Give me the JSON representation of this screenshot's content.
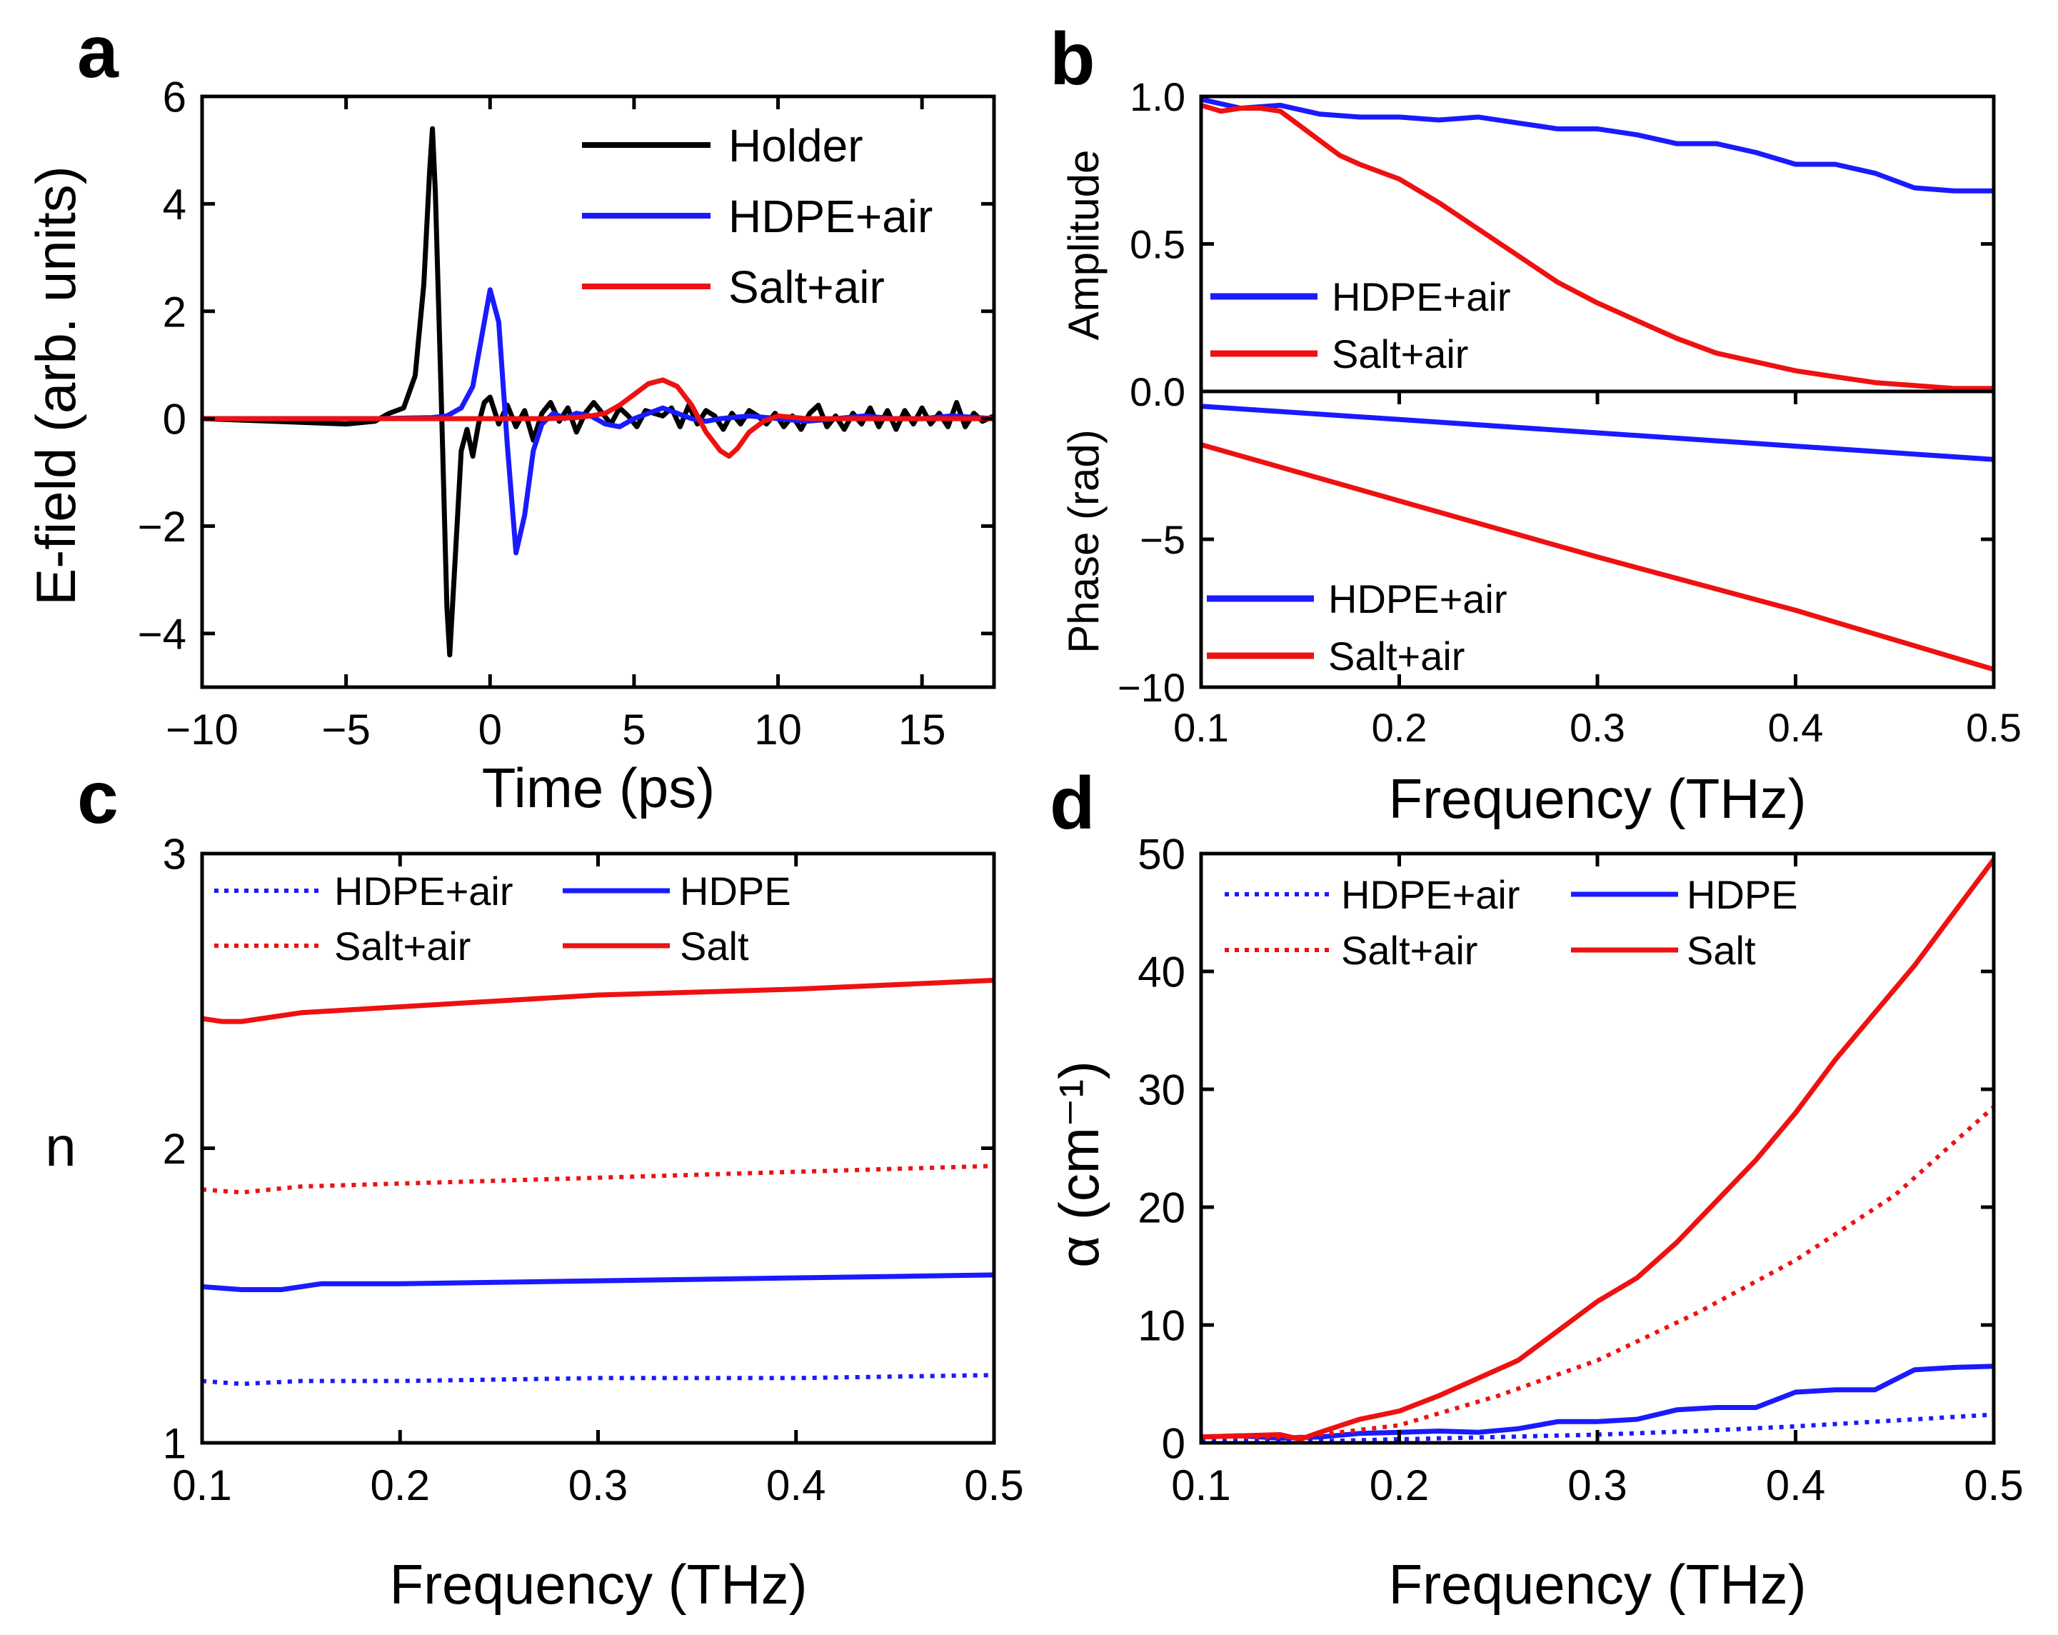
{
  "colors": {
    "holder": "#000000",
    "hdpe": "#1a1aff",
    "salt": "#ee1111",
    "frame": "#000000"
  },
  "panels": {
    "a": "a",
    "b": "b",
    "c": "c",
    "d": "d"
  },
  "chart_data": [
    {
      "id": "a",
      "type": "line",
      "xlabel": "Time (ps)",
      "ylabel": "E-field (arb. units)",
      "xlim": [
        -10,
        17.5
      ],
      "ylim": [
        -5,
        6
      ],
      "xticks": [
        -10,
        -5,
        0,
        5,
        10,
        15
      ],
      "xtick_labels": [
        "−10",
        "−5",
        "0",
        "5",
        "10",
        "15"
      ],
      "yticks": [
        -4,
        -2,
        0,
        2,
        4,
        6
      ],
      "ytick_labels": [
        "−4",
        "−2",
        "0",
        "2",
        "4",
        "6"
      ],
      "legend_position": "top-right",
      "series": [
        {
          "name": "Holder",
          "color": "#000000",
          "style": "solid",
          "x": [
            -10,
            -5,
            -4,
            -3.5,
            -3,
            -2.6,
            -2.3,
            -2.1,
            -2.0,
            -1.9,
            -1.7,
            -1.5,
            -1.4,
            -1.2,
            -1.0,
            -0.8,
            -0.6,
            -0.4,
            -0.2,
            0,
            0.3,
            0.6,
            0.9,
            1.2,
            1.5,
            1.8,
            2.1,
            2.4,
            2.7,
            3.0,
            3.3,
            3.6,
            3.9,
            4.2,
            4.5,
            4.8,
            5.1,
            5.4,
            5.7,
            6.0,
            6.3,
            6.6,
            6.9,
            7.2,
            7.5,
            7.8,
            8.1,
            8.4,
            8.7,
            9.0,
            9.3,
            9.6,
            9.9,
            10.2,
            10.5,
            10.8,
            11.1,
            11.4,
            11.7,
            12.0,
            12.3,
            12.6,
            12.9,
            13.2,
            13.5,
            13.8,
            14.1,
            14.4,
            14.7,
            15.0,
            15.3,
            15.6,
            15.9,
            16.2,
            16.5,
            16.8,
            17.1,
            17.5
          ],
          "y": [
            0,
            -0.1,
            -0.05,
            0.1,
            0.2,
            0.8,
            2.5,
            4.6,
            5.4,
            4.2,
            0.5,
            -3.5,
            -4.4,
            -2.5,
            -0.6,
            -0.2,
            -0.7,
            -0.1,
            0.3,
            0.4,
            -0.1,
            0.25,
            -0.15,
            0.15,
            -0.4,
            0.1,
            0.3,
            -0.05,
            0.2,
            -0.25,
            0.1,
            0.3,
            0.1,
            -0.1,
            0.2,
            0.05,
            -0.15,
            0.15,
            0.1,
            0.05,
            0.2,
            -0.15,
            0.25,
            -0.1,
            0.15,
            0.05,
            -0.2,
            0.1,
            -0.1,
            0.15,
            0.05,
            -0.1,
            0.1,
            -0.15,
            0.05,
            -0.2,
            0.1,
            0.25,
            -0.15,
            0.05,
            -0.2,
            0.1,
            -0.1,
            0.2,
            -0.15,
            0.15,
            -0.2,
            0.15,
            -0.1,
            0.2,
            -0.1,
            0.1,
            -0.15,
            0.3,
            -0.15,
            0.1,
            -0.05,
            0.05
          ]
        },
        {
          "name": "HDPE+air",
          "color": "#1a1aff",
          "style": "solid",
          "x": [
            -10,
            -4,
            -2,
            -1.5,
            -1.0,
            -0.6,
            -0.3,
            0,
            0.3,
            0.6,
            0.9,
            1.2,
            1.5,
            1.8,
            2.2,
            2.6,
            3.0,
            3.5,
            4.0,
            4.5,
            5.0,
            5.5,
            6.0,
            6.5,
            7.0,
            7.5,
            8.0,
            9.0,
            10,
            11,
            12,
            13,
            14,
            15,
            16,
            17.5
          ],
          "y": [
            0,
            0,
            0.02,
            0.05,
            0.2,
            0.6,
            1.5,
            2.4,
            1.8,
            -0.5,
            -2.5,
            -1.8,
            -0.6,
            -0.1,
            0.1,
            0.0,
            0.1,
            0.05,
            -0.1,
            -0.15,
            0.0,
            0.1,
            0.2,
            0.1,
            0.0,
            -0.05,
            0.0,
            0.05,
            0.0,
            -0.05,
            0.0,
            0.05,
            0.0,
            0.0,
            0.05,
            0.0
          ]
        },
        {
          "name": "Salt+air",
          "color": "#ee1111",
          "style": "solid",
          "x": [
            -10,
            -2,
            0,
            2,
            3,
            3.5,
            4.0,
            4.5,
            5.0,
            5.5,
            6.0,
            6.5,
            7.0,
            7.5,
            8.0,
            8.3,
            8.6,
            9.0,
            9.5,
            10,
            11,
            12,
            13,
            14,
            15,
            16,
            17.5
          ],
          "y": [
            0,
            0,
            0,
            0,
            0.02,
            0.05,
            0.1,
            0.25,
            0.45,
            0.65,
            0.72,
            0.6,
            0.25,
            -0.25,
            -0.6,
            -0.7,
            -0.55,
            -0.25,
            -0.05,
            0.05,
            0.0,
            0.0,
            0.0,
            0.0,
            0.0,
            0.0,
            0.0
          ]
        }
      ]
    },
    {
      "id": "b-top",
      "type": "line",
      "xlabel": "Frequency (THz)",
      "ylabel": "Amplitude",
      "xlim": [
        0.1,
        0.5
      ],
      "ylim": [
        0,
        1.0
      ],
      "yticks": [
        0,
        0.5,
        1.0
      ],
      "ytick_labels": [
        "0.0",
        "0.5",
        "1.0"
      ],
      "legend_position": "bottom-left",
      "series": [
        {
          "name": "HDPE+air",
          "color": "#1a1aff",
          "style": "solid",
          "x": [
            0.1,
            0.12,
            0.14,
            0.16,
            0.18,
            0.2,
            0.22,
            0.24,
            0.26,
            0.28,
            0.3,
            0.32,
            0.34,
            0.36,
            0.38,
            0.4,
            0.42,
            0.44,
            0.46,
            0.48,
            0.5
          ],
          "y": [
            0.99,
            0.96,
            0.97,
            0.94,
            0.93,
            0.93,
            0.92,
            0.93,
            0.91,
            0.89,
            0.89,
            0.87,
            0.84,
            0.84,
            0.81,
            0.77,
            0.77,
            0.74,
            0.69,
            0.68,
            0.68
          ]
        },
        {
          "name": "Salt+air",
          "color": "#ee1111",
          "style": "solid",
          "x": [
            0.1,
            0.11,
            0.12,
            0.13,
            0.14,
            0.15,
            0.16,
            0.17,
            0.18,
            0.2,
            0.22,
            0.24,
            0.26,
            0.28,
            0.3,
            0.32,
            0.34,
            0.36,
            0.38,
            0.4,
            0.42,
            0.44,
            0.46,
            0.48,
            0.5
          ],
          "y": [
            0.97,
            0.95,
            0.96,
            0.96,
            0.95,
            0.9,
            0.85,
            0.8,
            0.77,
            0.72,
            0.64,
            0.55,
            0.46,
            0.37,
            0.3,
            0.24,
            0.18,
            0.13,
            0.1,
            0.07,
            0.05,
            0.03,
            0.02,
            0.01,
            0.01
          ]
        }
      ]
    },
    {
      "id": "b-bottom",
      "type": "line",
      "xlabel": "Frequency (THz)",
      "ylabel": "Phase (rad)",
      "xlim": [
        0.1,
        0.5
      ],
      "ylim": [
        -10,
        0
      ],
      "xticks": [
        0.1,
        0.2,
        0.3,
        0.4,
        0.5
      ],
      "xtick_labels": [
        "0.1",
        "0.2",
        "0.3",
        "0.4",
        "0.5"
      ],
      "yticks": [
        -10,
        -5
      ],
      "ytick_labels": [
        "−10",
        "−5"
      ],
      "legend_position": "bottom-left",
      "series": [
        {
          "name": "HDPE+air",
          "color": "#1a1aff",
          "style": "solid",
          "x": [
            0.1,
            0.2,
            0.3,
            0.4,
            0.5
          ],
          "y": [
            -0.5,
            -0.95,
            -1.4,
            -1.85,
            -2.3
          ]
        },
        {
          "name": "Salt+air",
          "color": "#ee1111",
          "style": "solid",
          "x": [
            0.1,
            0.2,
            0.3,
            0.4,
            0.5
          ],
          "y": [
            -1.8,
            -3.7,
            -5.6,
            -7.4,
            -9.4
          ]
        }
      ]
    },
    {
      "id": "c",
      "type": "line",
      "xlabel": "Frequency (THz)",
      "ylabel": "n",
      "xlim": [
        0.1,
        0.5
      ],
      "ylim": [
        1,
        3
      ],
      "xticks": [
        0.1,
        0.2,
        0.3,
        0.4,
        0.5
      ],
      "xtick_labels": [
        "0.1",
        "0.2",
        "0.3",
        "0.4",
        "0.5"
      ],
      "yticks": [
        1,
        2,
        3
      ],
      "ytick_labels": [
        "1",
        "2",
        "3"
      ],
      "legend_position": "top",
      "series": [
        {
          "name": "HDPE+air",
          "color": "#1a1aff",
          "style": "dotted",
          "x": [
            0.1,
            0.12,
            0.15,
            0.2,
            0.3,
            0.4,
            0.5
          ],
          "y": [
            1.21,
            1.2,
            1.21,
            1.21,
            1.22,
            1.22,
            1.23
          ]
        },
        {
          "name": "HDPE",
          "color": "#1a1aff",
          "style": "solid",
          "x": [
            0.1,
            0.12,
            0.14,
            0.16,
            0.2,
            0.3,
            0.4,
            0.5
          ],
          "y": [
            1.53,
            1.52,
            1.52,
            1.54,
            1.54,
            1.55,
            1.56,
            1.57
          ]
        },
        {
          "name": "Salt+air",
          "color": "#ee1111",
          "style": "dotted",
          "x": [
            0.1,
            0.12,
            0.15,
            0.2,
            0.3,
            0.4,
            0.5
          ],
          "y": [
            1.86,
            1.85,
            1.87,
            1.88,
            1.9,
            1.92,
            1.94
          ]
        },
        {
          "name": "Salt",
          "color": "#ee1111",
          "style": "solid",
          "x": [
            0.1,
            0.11,
            0.12,
            0.13,
            0.15,
            0.2,
            0.3,
            0.4,
            0.5
          ],
          "y": [
            2.44,
            2.43,
            2.43,
            2.44,
            2.46,
            2.48,
            2.52,
            2.54,
            2.57
          ]
        }
      ]
    },
    {
      "id": "d",
      "type": "line",
      "xlabel": "Frequency (THz)",
      "ylabel": "α (cm⁻¹)",
      "xlim": [
        0.1,
        0.5
      ],
      "ylim": [
        0,
        50
      ],
      "xticks": [
        0.1,
        0.2,
        0.3,
        0.4,
        0.5
      ],
      "xtick_labels": [
        "0.1",
        "0.2",
        "0.3",
        "0.4",
        "0.5"
      ],
      "yticks": [
        0,
        10,
        20,
        30,
        40,
        50
      ],
      "ytick_labels": [
        "0",
        "10",
        "20",
        "30",
        "40",
        "50"
      ],
      "legend_position": "top",
      "series": [
        {
          "name": "HDPE+air",
          "color": "#1a1aff",
          "style": "dotted",
          "x": [
            0.1,
            0.15,
            0.2,
            0.25,
            0.3,
            0.35,
            0.4,
            0.45,
            0.5
          ],
          "y": [
            0.2,
            0.1,
            0.3,
            0.5,
            0.7,
            1.0,
            1.4,
            1.9,
            2.4
          ]
        },
        {
          "name": "HDPE",
          "color": "#1a1aff",
          "style": "solid",
          "x": [
            0.1,
            0.12,
            0.14,
            0.16,
            0.18,
            0.2,
            0.22,
            0.24,
            0.26,
            0.28,
            0.3,
            0.32,
            0.34,
            0.36,
            0.38,
            0.4,
            0.42,
            0.44,
            0.46,
            0.48,
            0.5
          ],
          "y": [
            0.5,
            0.6,
            0.4,
            0.5,
            0.8,
            0.9,
            1.0,
            0.9,
            1.2,
            1.8,
            1.8,
            2.0,
            2.8,
            3.0,
            3.0,
            4.3,
            4.5,
            4.5,
            6.2,
            6.4,
            6.5
          ]
        },
        {
          "name": "Salt+air",
          "color": "#ee1111",
          "style": "dotted",
          "x": [
            0.1,
            0.15,
            0.2,
            0.25,
            0.3,
            0.35,
            0.4,
            0.45,
            0.5
          ],
          "y": [
            0.5,
            0.5,
            1.5,
            4.0,
            7.0,
            11.0,
            15.5,
            21.0,
            28.5
          ]
        },
        {
          "name": "Salt",
          "color": "#ee1111",
          "style": "solid",
          "x": [
            0.1,
            0.12,
            0.14,
            0.15,
            0.16,
            0.18,
            0.2,
            0.22,
            0.24,
            0.26,
            0.28,
            0.3,
            0.32,
            0.34,
            0.36,
            0.38,
            0.4,
            0.42,
            0.44,
            0.46,
            0.48,
            0.5
          ],
          "y": [
            0.5,
            0.6,
            0.7,
            0.3,
            0.9,
            2.0,
            2.7,
            4.0,
            5.5,
            7.0,
            9.5,
            12.0,
            14.0,
            17.0,
            20.5,
            24.0,
            28.0,
            32.5,
            36.5,
            40.5,
            45.0,
            49.5
          ]
        }
      ]
    }
  ]
}
